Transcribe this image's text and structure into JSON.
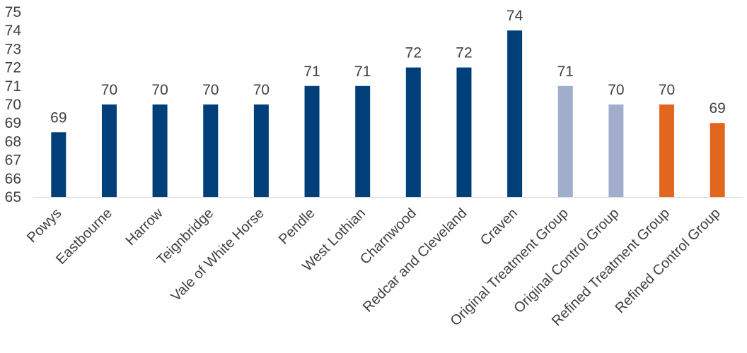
{
  "chart_data": {
    "type": "bar",
    "title": "",
    "xlabel": "",
    "ylabel": "",
    "ylim": [
      65,
      75
    ],
    "yticks": [
      "65",
      "66",
      "67",
      "68",
      "69",
      "70",
      "71",
      "72",
      "73",
      "74",
      "75"
    ],
    "grid": false,
    "legend": "none",
    "categories": [
      "Powys",
      "Eastbourne",
      "Harrow",
      "Teignbridge",
      "Vale of White Horse",
      "Pendle",
      "West Lothian",
      "Charnwood",
      "Redcar and Cleveland",
      "Craven",
      "Original Treatment Group",
      "Original Control Group",
      "Refined Treatment Group",
      "Refined Control Group"
    ],
    "values": [
      68.5,
      70,
      70,
      70,
      70,
      71,
      71,
      72,
      72,
      74,
      71,
      70,
      70,
      69
    ],
    "data_labels": [
      "69",
      "70",
      "70",
      "70",
      "70",
      "71",
      "71",
      "72",
      "72",
      "74",
      "71",
      "70",
      "70",
      "69"
    ],
    "bar_colors": [
      "#003f7a",
      "#003f7a",
      "#003f7a",
      "#003f7a",
      "#003f7a",
      "#003f7a",
      "#003f7a",
      "#003f7a",
      "#003f7a",
      "#003f7a",
      "#a1aecb",
      "#a1aecb",
      "#e3661f",
      "#e3661f"
    ]
  }
}
